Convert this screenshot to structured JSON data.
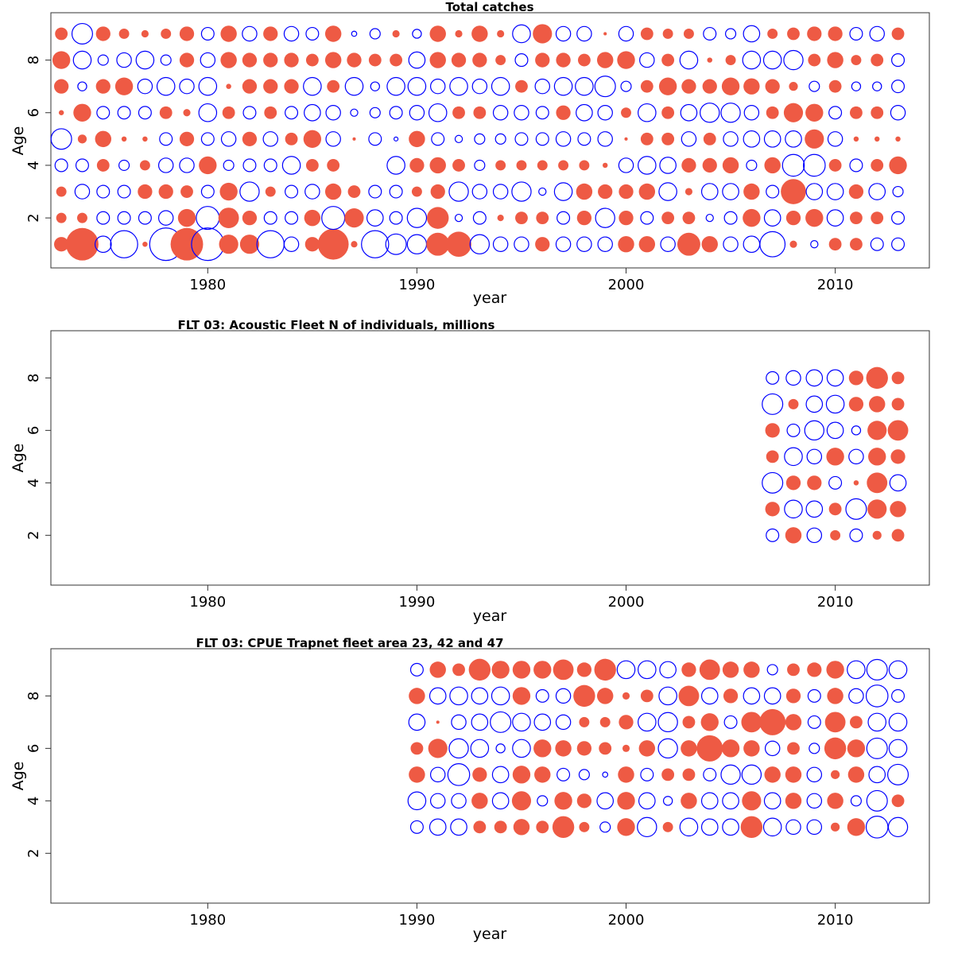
{
  "chart_data": [
    {
      "type": "bubble",
      "title": "Total catches",
      "xlabel": "year",
      "ylabel": "Age",
      "xlim": [
        1972.5,
        2014.5
      ],
      "ylim": [
        0.1,
        9.8
      ],
      "xticks": [
        1980,
        1990,
        2000,
        2010
      ],
      "yticks": [
        2,
        4,
        6,
        8
      ],
      "colors": {
        "positive": "#ee5a44",
        "negative": "#0000ff"
      },
      "ages": [
        1,
        2,
        3,
        4,
        5,
        6,
        7,
        8,
        9
      ],
      "years": [
        1973,
        1974,
        1975,
        1976,
        1977,
        1978,
        1979,
        1980,
        1981,
        1982,
        1983,
        1984,
        1985,
        1986,
        1987,
        1988,
        1989,
        1990,
        1991,
        1992,
        1993,
        1994,
        1995,
        1996,
        1997,
        1998,
        1999,
        2000,
        2001,
        2002,
        2003,
        2004,
        2005,
        2006,
        2007,
        2008,
        2009,
        2010,
        2011,
        2012,
        2013
      ],
      "residuals": [
        [
          0.4,
          2.0,
          -0.5,
          -1.4,
          0.05,
          -2.0,
          2.0,
          -2.0,
          0.7,
          0.7,
          -1.4,
          -0.4,
          0.4,
          1.8,
          0.08,
          -1.4,
          -0.8,
          -0.7,
          1.0,
          1.2,
          -0.7,
          -0.4,
          -0.4,
          0.4,
          -0.4,
          -0.4,
          -0.4,
          0.5,
          0.5,
          -0.4,
          1.0,
          0.5,
          -0.4,
          -0.5,
          -1.2,
          0.1,
          -0.1,
          0.3,
          0.3,
          -0.3,
          -0.3
        ],
        [
          0.2,
          0.2,
          -0.3,
          -0.3,
          -0.3,
          -0.4,
          0.6,
          -1.0,
          0.8,
          0.4,
          -0.3,
          -0.3,
          0.5,
          -1.0,
          0.7,
          -0.5,
          -0.3,
          -0.7,
          0.9,
          -0.1,
          -0.3,
          0.08,
          0.3,
          0.3,
          -0.3,
          0.4,
          -0.7,
          0.4,
          -0.3,
          0.3,
          0.3,
          -0.1,
          -0.3,
          0.6,
          -0.5,
          0.4,
          0.6,
          -0.5,
          0.3,
          0.3,
          -0.3
        ],
        [
          0.2,
          -0.4,
          -0.3,
          -0.3,
          0.4,
          0.4,
          0.3,
          -0.3,
          0.6,
          -0.7,
          0.2,
          -0.3,
          -0.4,
          0.5,
          0.3,
          -0.3,
          -0.3,
          0.2,
          0.4,
          -0.7,
          -0.4,
          -0.4,
          -0.7,
          -0.1,
          -0.6,
          0.5,
          0.4,
          0.4,
          0.5,
          -0.6,
          0.1,
          -0.5,
          -0.5,
          0.5,
          -0.3,
          1.2,
          -0.5,
          -0.5,
          0.4,
          -0.5,
          -0.2
        ],
        [
          -0.3,
          -0.3,
          0.3,
          -0.2,
          0.2,
          -0.4,
          -0.4,
          0.6,
          -0.2,
          -0.3,
          -0.3,
          -0.6,
          0.3,
          0.3,
          0.0,
          0.0,
          -0.6,
          0.4,
          0.5,
          0.3,
          -0.2,
          0.2,
          0.2,
          0.2,
          0.2,
          0.2,
          0.05,
          -0.4,
          -0.6,
          -0.5,
          0.4,
          0.4,
          0.5,
          -0.2,
          0.5,
          -0.9,
          -0.9,
          0.3,
          -0.3,
          0.3,
          0.6
        ],
        [
          -0.8,
          0.15,
          0.5,
          0.05,
          0.05,
          -0.3,
          0.4,
          -0.3,
          -0.4,
          0.4,
          -0.4,
          0.3,
          0.6,
          -0.4,
          0.02,
          -0.3,
          -0.03,
          0.5,
          -0.3,
          -0.1,
          -0.2,
          -0.2,
          -0.3,
          -0.3,
          -0.4,
          -0.3,
          -0.4,
          0.02,
          0.3,
          0.3,
          -0.4,
          0.3,
          -0.4,
          -0.5,
          -0.5,
          -0.5,
          0.7,
          -0.4,
          0.05,
          0.05,
          0.05
        ],
        [
          0.05,
          0.6,
          -0.3,
          -0.3,
          -0.3,
          0.3,
          0.1,
          -0.6,
          0.3,
          -0.3,
          0.3,
          -0.3,
          -0.5,
          -0.4,
          -0.1,
          -0.2,
          -0.3,
          -0.4,
          -0.6,
          0.3,
          0.3,
          -0.4,
          -0.4,
          -0.3,
          0.4,
          -0.5,
          -0.4,
          0.2,
          -0.6,
          0.3,
          -0.5,
          -0.7,
          -0.7,
          -0.4,
          0.3,
          0.7,
          0.6,
          -0.3,
          0.3,
          0.3,
          -0.4
        ],
        [
          0.4,
          -0.15,
          0.4,
          0.6,
          -0.4,
          -0.6,
          -0.4,
          -0.6,
          0.05,
          0.4,
          0.4,
          0.4,
          -0.6,
          0.3,
          -0.6,
          -0.15,
          -0.6,
          -0.6,
          -0.4,
          -0.6,
          -0.4,
          -0.6,
          0.3,
          -0.4,
          -0.6,
          -0.6,
          -0.8,
          -0.2,
          0.3,
          0.6,
          0.4,
          0.4,
          0.6,
          0.5,
          0.4,
          0.15,
          -0.2,
          0.3,
          -0.15,
          -0.15,
          -0.3
        ],
        [
          0.6,
          -0.6,
          -0.2,
          -0.4,
          -0.6,
          -0.2,
          0.4,
          -0.4,
          0.5,
          0.4,
          0.4,
          0.4,
          0.3,
          0.5,
          0.4,
          0.3,
          0.3,
          -0.5,
          0.5,
          0.4,
          0.4,
          0.2,
          -0.3,
          0.4,
          0.4,
          0.3,
          0.5,
          0.6,
          -0.4,
          0.3,
          -0.6,
          0.05,
          0.2,
          -0.6,
          -0.6,
          -0.7,
          0.3,
          0.5,
          0.2,
          0.3,
          -0.3
        ],
        [
          0.3,
          -0.8,
          0.4,
          0.2,
          0.1,
          0.2,
          0.4,
          -0.3,
          0.5,
          -0.4,
          0.4,
          -0.4,
          -0.3,
          0.5,
          -0.05,
          -0.2,
          0.1,
          -0.15,
          0.5,
          0.1,
          0.5,
          0.1,
          -0.6,
          0.7,
          -0.4,
          -0.4,
          0.02,
          -0.4,
          0.3,
          0.2,
          0.2,
          -0.3,
          -0.2,
          -0.5,
          0.2,
          0.3,
          0.4,
          0.4,
          -0.3,
          -0.4,
          0.3
        ]
      ]
    },
    {
      "type": "bubble",
      "title": "FLT 03: Acoustic Fleet   N of individuals, millions",
      "xlabel": "year",
      "ylabel": "Age",
      "xlim": [
        1972.5,
        2014.5
      ],
      "ylim": [
        0.1,
        9.8
      ],
      "xticks": [
        1980,
        1990,
        2000,
        2010
      ],
      "yticks": [
        2,
        4,
        6,
        8
      ],
      "colors": {
        "positive": "#ee5a44",
        "negative": "#0000ff"
      },
      "ages": [
        2,
        3,
        4,
        5,
        6,
        7,
        8
      ],
      "years": [
        2007,
        2008,
        2009,
        2010,
        2011,
        2012,
        2013
      ],
      "residuals": [
        [
          -0.3,
          0.5,
          -0.4,
          0.2,
          -0.3,
          0.15,
          0.3
        ],
        [
          0.4,
          -0.6,
          -0.5,
          0.3,
          -0.8,
          0.7,
          0.5
        ],
        [
          -0.8,
          0.4,
          0.4,
          -0.3,
          0.05,
          0.8,
          -0.5
        ],
        [
          0.3,
          -0.6,
          -0.4,
          0.6,
          -0.4,
          0.6,
          0.4
        ],
        [
          0.4,
          -0.3,
          -0.7,
          -0.5,
          -0.15,
          0.7,
          0.8
        ],
        [
          -0.8,
          0.2,
          -0.5,
          -0.6,
          0.4,
          0.5,
          0.3
        ],
        [
          -0.3,
          -0.4,
          -0.5,
          -0.5,
          0.4,
          0.9,
          0.3
        ]
      ]
    },
    {
      "type": "bubble",
      "title": "FLT 03: CPUE Trapnet fleet area 23, 42 and 47",
      "xlabel": "year",
      "ylabel": "Age",
      "xlim": [
        1972.5,
        2014.5
      ],
      "ylim": [
        0.1,
        9.8
      ],
      "xticks": [
        1980,
        1990,
        2000,
        2010
      ],
      "yticks": [
        2,
        4,
        6,
        8
      ],
      "colors": {
        "positive": "#ee5a44",
        "negative": "#0000ff"
      },
      "ages": [
        3,
        4,
        5,
        6,
        7,
        8,
        9
      ],
      "years": [
        1990,
        1991,
        1992,
        1993,
        1994,
        1995,
        1996,
        1997,
        1998,
        1999,
        2000,
        2001,
        2002,
        2003,
        2004,
        2005,
        2006,
        2007,
        2008,
        2009,
        2010,
        2011,
        2012,
        2013
      ],
      "residuals": [
        [
          -0.3,
          -0.5,
          -0.5,
          0.3,
          0.3,
          0.5,
          0.3,
          0.9,
          0.2,
          -0.2,
          0.6,
          -0.7,
          0.2,
          -0.6,
          -0.5,
          -0.5,
          0.9,
          -0.6,
          -0.4,
          -0.4,
          0.15,
          0.6,
          -0.9,
          -0.7
        ],
        [
          -0.6,
          -0.4,
          -0.4,
          0.5,
          -0.5,
          0.7,
          -0.2,
          0.6,
          0.4,
          -0.5,
          0.6,
          -0.5,
          -0.15,
          0.5,
          -0.5,
          -0.5,
          0.7,
          -0.5,
          0.5,
          -0.4,
          0.5,
          -0.2,
          -0.8,
          0.3
        ],
        [
          0.5,
          -0.4,
          -0.9,
          0.4,
          -0.5,
          0.6,
          0.5,
          -0.3,
          -0.2,
          -0.05,
          0.5,
          -0.3,
          0.3,
          0.3,
          -0.3,
          -0.7,
          -0.7,
          0.5,
          0.5,
          -0.4,
          0.15,
          0.5,
          -0.5,
          -0.8
        ],
        [
          0.3,
          0.7,
          -0.7,
          -0.6,
          -0.15,
          -0.6,
          0.6,
          0.5,
          0.4,
          0.3,
          0.1,
          0.5,
          -0.7,
          0.5,
          1.3,
          0.6,
          0.5,
          -0.4,
          0.3,
          -0.2,
          0.9,
          0.6,
          -0.8,
          -0.6
        ],
        [
          -0.5,
          0.02,
          -0.4,
          -0.5,
          -0.8,
          -0.6,
          -0.5,
          -0.4,
          0.2,
          0.2,
          0.4,
          -0.6,
          -0.7,
          0.3,
          0.6,
          -0.3,
          0.8,
          1.3,
          0.5,
          -0.3,
          0.8,
          0.3,
          -0.6,
          -0.6
        ],
        [
          0.5,
          -0.5,
          -0.6,
          -0.5,
          -0.6,
          0.6,
          -0.3,
          -0.4,
          0.9,
          0.5,
          0.1,
          0.3,
          -0.6,
          0.8,
          -0.5,
          0.4,
          -0.5,
          -0.5,
          0.4,
          -0.3,
          0.5,
          -0.4,
          -0.9,
          -0.3
        ],
        [
          -0.3,
          0.5,
          0.3,
          0.9,
          0.6,
          0.6,
          0.6,
          0.8,
          0.4,
          0.9,
          -0.6,
          -0.6,
          -0.5,
          0.4,
          0.8,
          0.5,
          0.5,
          -0.2,
          0.3,
          0.4,
          0.6,
          -0.6,
          -0.8,
          -0.6
        ]
      ]
    }
  ]
}
